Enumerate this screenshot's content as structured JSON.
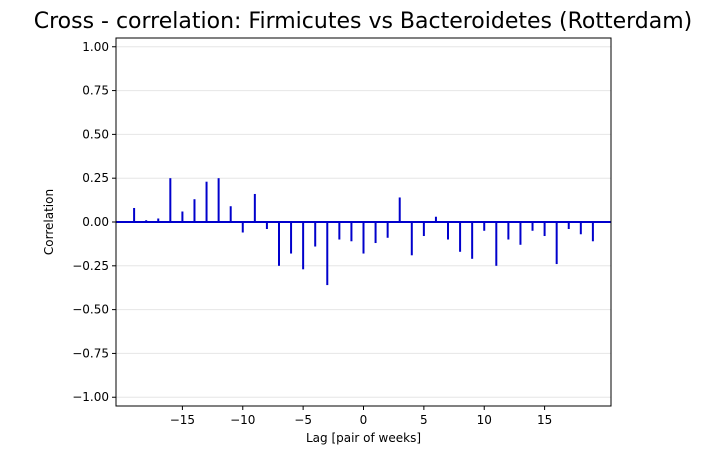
{
  "chart_data": {
    "type": "bar",
    "title": "Cross - correlation: Firmicutes vs Bacteroidetes (Rotterdam)",
    "xlabel": "Lag [pair of weeks]",
    "ylabel": "Correlation",
    "xlim": [
      -20.5,
      20.5
    ],
    "ylim": [
      -1.05,
      1.05
    ],
    "xticks": [
      -15,
      -10,
      -5,
      0,
      5,
      10,
      15
    ],
    "xtick_labels": [
      "−15",
      "−10",
      "−5",
      "0",
      "5",
      "10",
      "15"
    ],
    "yticks": [
      -1.0,
      -0.75,
      -0.5,
      -0.25,
      0.0,
      0.25,
      0.5,
      0.75,
      1.0
    ],
    "ytick_labels": [
      "−1.00",
      "−0.75",
      "−0.50",
      "−0.25",
      "0.00",
      "0.25",
      "0.50",
      "0.75",
      "1.00"
    ],
    "grid": "horizontal",
    "color": "#0000cc",
    "lags": [
      -19,
      -18,
      -17,
      -16,
      -15,
      -14,
      -13,
      -12,
      -11,
      -10,
      -9,
      -8,
      -7,
      -6,
      -5,
      -4,
      -3,
      -2,
      -1,
      0,
      1,
      2,
      3,
      4,
      5,
      6,
      7,
      8,
      9,
      10,
      11,
      12,
      13,
      14,
      15,
      16,
      17,
      18,
      19
    ],
    "values": [
      0.08,
      0.01,
      0.02,
      0.25,
      0.06,
      0.13,
      0.23,
      0.25,
      0.09,
      -0.06,
      0.16,
      -0.04,
      -0.25,
      -0.18,
      -0.27,
      -0.14,
      -0.36,
      -0.1,
      -0.11,
      -0.18,
      -0.12,
      -0.09,
      0.14,
      -0.19,
      -0.08,
      0.03,
      -0.1,
      -0.17,
      -0.21,
      -0.05,
      -0.25,
      -0.1,
      -0.13,
      -0.05,
      -0.08,
      -0.24,
      -0.04,
      -0.07,
      -0.11
    ]
  }
}
